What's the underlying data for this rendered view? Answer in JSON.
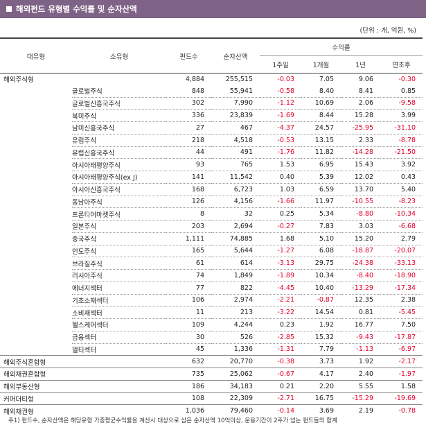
{
  "title": "해외펀드 유형별 수익률 및 순자산액",
  "unit_note": "(단위 : 개, 억원, %)",
  "headers": {
    "major": "대유형",
    "minor": "소유형",
    "funds": "펀드수",
    "assets": "순자산액",
    "returns": "수익률",
    "w1": "1주일",
    "m1": "1개월",
    "y1": "1년",
    "ytd": "연초후"
  },
  "rows": [
    {
      "major": "해외주식형",
      "minor": "",
      "funds": "4,884",
      "assets": "255,515",
      "w1": "-0.03",
      "m1": "7.05",
      "y1": "9.06",
      "ytd": "-0.30"
    },
    {
      "major": "",
      "minor": "글로벌주식",
      "funds": "848",
      "assets": "55,941",
      "w1": "-0.58",
      "m1": "8.40",
      "y1": "8.41",
      "ytd": "0.85"
    },
    {
      "major": "",
      "minor": "글로벌신흥국주식",
      "funds": "302",
      "assets": "7,990",
      "w1": "-1.12",
      "m1": "10.69",
      "y1": "2.06",
      "ytd": "-9.58"
    },
    {
      "major": "",
      "minor": "북미주식",
      "funds": "336",
      "assets": "23,839",
      "w1": "-1.69",
      "m1": "8.44",
      "y1": "15.28",
      "ytd": "3.99"
    },
    {
      "major": "",
      "minor": "남미신흥국주식",
      "funds": "27",
      "assets": "467",
      "w1": "-4.37",
      "m1": "24.57",
      "y1": "-25.95",
      "ytd": "-31.10"
    },
    {
      "major": "",
      "minor": "유럽주식",
      "funds": "218",
      "assets": "4,518",
      "w1": "-0.53",
      "m1": "13.15",
      "y1": "2.33",
      "ytd": "-8.78"
    },
    {
      "major": "",
      "minor": "유럽신흥국주식",
      "funds": "44",
      "assets": "491",
      "w1": "-1.76",
      "m1": "11.82",
      "y1": "-14.28",
      "ytd": "-21.50"
    },
    {
      "major": "",
      "minor": "아시아태평양주식",
      "funds": "93",
      "assets": "765",
      "w1": "1.53",
      "m1": "6.95",
      "y1": "15.43",
      "ytd": "3.92"
    },
    {
      "major": "",
      "minor": "아시아태평양주식(ex J)",
      "funds": "141",
      "assets": "11,542",
      "w1": "0.40",
      "m1": "5.39",
      "y1": "12.02",
      "ytd": "0.43"
    },
    {
      "major": "",
      "minor": "아시아신흥국주식",
      "funds": "168",
      "assets": "6,723",
      "w1": "1.03",
      "m1": "6.59",
      "y1": "13.70",
      "ytd": "5.40"
    },
    {
      "major": "",
      "minor": "동남아주식",
      "funds": "126",
      "assets": "4,156",
      "w1": "-1.66",
      "m1": "11.97",
      "y1": "-10.55",
      "ytd": "-8.23"
    },
    {
      "major": "",
      "minor": "프론티어마켓주식",
      "funds": "8",
      "assets": "32",
      "w1": "0.25",
      "m1": "5.34",
      "y1": "-8.80",
      "ytd": "-10.34"
    },
    {
      "major": "",
      "minor": "일본주식",
      "funds": "203",
      "assets": "2,694",
      "w1": "-0.27",
      "m1": "7.83",
      "y1": "3.03",
      "ytd": "-6.68"
    },
    {
      "major": "",
      "minor": "중국주식",
      "funds": "1,111",
      "assets": "74,885",
      "w1": "1.68",
      "m1": "5.10",
      "y1": "15.20",
      "ytd": "2.79"
    },
    {
      "major": "",
      "minor": "인도주식",
      "funds": "165",
      "assets": "5,644",
      "w1": "-1.27",
      "m1": "6.08",
      "y1": "-18.87",
      "ytd": "-20.07"
    },
    {
      "major": "",
      "minor": "브라질주식",
      "funds": "61",
      "assets": "614",
      "w1": "-3.13",
      "m1": "29.75",
      "y1": "-24.38",
      "ytd": "-33.13"
    },
    {
      "major": "",
      "minor": "러시아주식",
      "funds": "74",
      "assets": "1,849",
      "w1": "-1.89",
      "m1": "10.34",
      "y1": "-8.40",
      "ytd": "-18.90"
    },
    {
      "major": "",
      "minor": "에너지섹터",
      "funds": "77",
      "assets": "822",
      "w1": "-4.45",
      "m1": "10.40",
      "y1": "-13.29",
      "ytd": "-17.34"
    },
    {
      "major": "",
      "minor": "기초소재섹터",
      "funds": "106",
      "assets": "2,974",
      "w1": "-2.21",
      "m1": "-0.87",
      "y1": "12.35",
      "ytd": "2.38"
    },
    {
      "major": "",
      "minor": "소비재섹터",
      "funds": "11",
      "assets": "213",
      "w1": "-3.22",
      "m1": "14.54",
      "y1": "0.81",
      "ytd": "-5.45"
    },
    {
      "major": "",
      "minor": "헬스케어섹터",
      "funds": "109",
      "assets": "4,244",
      "w1": "0.23",
      "m1": "1.92",
      "y1": "16.77",
      "ytd": "7.50"
    },
    {
      "major": "",
      "minor": "금융섹터",
      "funds": "30",
      "assets": "526",
      "w1": "-2.85",
      "m1": "15.32",
      "y1": "-9.43",
      "ytd": "-17.87"
    },
    {
      "major": "",
      "minor": "멀티섹터",
      "funds": "45",
      "assets": "1,336",
      "w1": "-1.31",
      "m1": "7.79",
      "y1": "-1.13",
      "ytd": "-6.97"
    },
    {
      "major": "해외주식혼합형",
      "minor": "",
      "funds": "632",
      "assets": "20,770",
      "w1": "-0.38",
      "m1": "3.73",
      "y1": "1.92",
      "ytd": "-2.17"
    },
    {
      "major": "해외채권혼합형",
      "minor": "",
      "funds": "735",
      "assets": "25,062",
      "w1": "-0.67",
      "m1": "4.17",
      "y1": "2.40",
      "ytd": "-1.97"
    },
    {
      "major": "해외부동산형",
      "minor": "",
      "funds": "186",
      "assets": "34,183",
      "w1": "0.21",
      "m1": "2.20",
      "y1": "5.55",
      "ytd": "1.58"
    },
    {
      "major": "커머더티형",
      "minor": "",
      "funds": "108",
      "assets": "22,309",
      "w1": "-2.71",
      "m1": "16.75",
      "y1": "-15.29",
      "ytd": "-19.69"
    },
    {
      "major": "해외채권형",
      "minor": "",
      "funds": "1,036",
      "assets": "79,460",
      "w1": "-0.14",
      "m1": "3.69",
      "y1": "2.19",
      "ytd": "-0.78"
    }
  ],
  "footnote": "주1) 펀드수, 순자산액은 해당유형 가중평균수익률을 계산시 대상으로 삼은 순자산액 10억이상, 운용기간이 2주가 넘는 펀드들의 합계",
  "colors": {
    "title_bg": "#7f6387",
    "negative": "#e4002b"
  }
}
